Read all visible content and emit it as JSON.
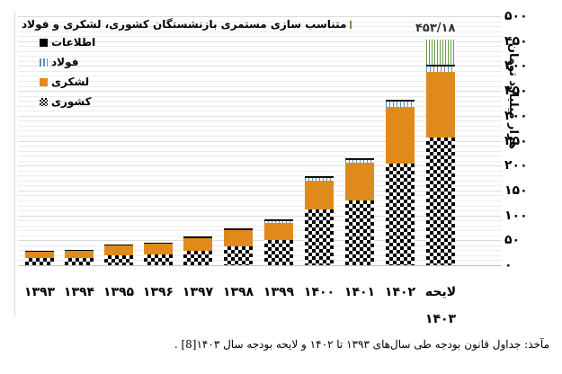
{
  "chart_data": {
    "type": "bar",
    "stacked": true,
    "title": "",
    "xlabel": "",
    "ylabel": "هزار میلیارد تومان",
    "ylim": [
      0,
      500
    ],
    "yticks": [
      "۰",
      "۵۰",
      "۱۰۰",
      "۱۵۰",
      "۲۰۰",
      "۲۵۰",
      "۳۰۰",
      "۳۵۰",
      "۴۰۰",
      "۴۵۰",
      "۵۰۰"
    ],
    "ytick_values": [
      0,
      50,
      100,
      150,
      200,
      250,
      300,
      350,
      400,
      450,
      500
    ],
    "grid": true,
    "legend_position": "top-left",
    "categories": [
      "۱۳۹۳",
      "۱۳۹۴",
      "۱۳۹۵",
      "۱۳۹۶",
      "۱۳۹۷",
      "۱۳۹۸",
      "۱۳۹۹",
      "۱۴۰۰",
      "۱۴۰۱",
      "۱۴۰۲",
      "لایحه ۱۴۰۳"
    ],
    "series": [
      {
        "name": "کشوری",
        "key": "keshvari",
        "values": [
          14,
          15,
          20,
          22,
          29,
          38,
          51,
          112,
          130,
          204,
          256
        ]
      },
      {
        "name": "لشکری",
        "key": "lashkari",
        "values": [
          13,
          14,
          20,
          21,
          25,
          32,
          34,
          58,
          76,
          114,
          132
        ]
      },
      {
        "name": "فولاد",
        "key": "foolad",
        "values": [
          0,
          0,
          0,
          0,
          2,
          2,
          5,
          7,
          7,
          12,
          12
        ]
      },
      {
        "name": "اطلاعات",
        "key": "ettelaat",
        "values": [
          0.5,
          0.5,
          0.5,
          0.5,
          0.5,
          0.5,
          0.5,
          0.5,
          0.5,
          0.5,
          1
        ]
      },
      {
        "name": "متناسب سازی مستمری بازنشستگان کشوری، لشکری و فولاد",
        "key": "motanaseb",
        "values": [
          0,
          0,
          0,
          0,
          0,
          0,
          0,
          0,
          0,
          0,
          52.18
        ]
      }
    ],
    "annotations": [
      {
        "category": "لایحه ۱۴۰۳",
        "text": "۴۵۳/۱۸",
        "value": 453.18
      }
    ],
    "colors": {
      "keshvari": "checker black/white",
      "lashkari": "#e08a1b",
      "foolad": "#5b8fb5",
      "ettelaat": "#000000",
      "motanaseb": "#6a9a46"
    }
  },
  "legend": {
    "items": [
      {
        "key": "motanaseb",
        "label": "متناسب سازی مستمری بازنشستگان کشوری، لشکری و فولاد"
      },
      {
        "key": "ettelaat",
        "label": "اطلاعات"
      },
      {
        "key": "foolad",
        "label": "فولاد"
      },
      {
        "key": "lashkari",
        "label": "لشکری"
      },
      {
        "key": "keshvari",
        "label": "کشوری"
      }
    ]
  },
  "xaxis": {
    "labels": [
      "۱۳۹۳",
      "۱۳۹۴",
      "۱۳۹۵",
      "۱۳۹۶",
      "۱۳۹۷",
      "۱۳۹۸",
      "۱۳۹۹",
      "۱۴۰۰",
      "۱۴۰۱",
      "۱۴۰۲"
    ],
    "last_label_line1": "لایحه",
    "last_label_line2": "۱۴۰۳"
  },
  "total_label": "۴۵۳/۱۸",
  "source_text": "مآخذ: جداول قانون بودجه طی سال‌های ۱۳۹۳ تا ۱۴۰۲ و لایحه بودجه سال ۱۴۰۳[8] ."
}
